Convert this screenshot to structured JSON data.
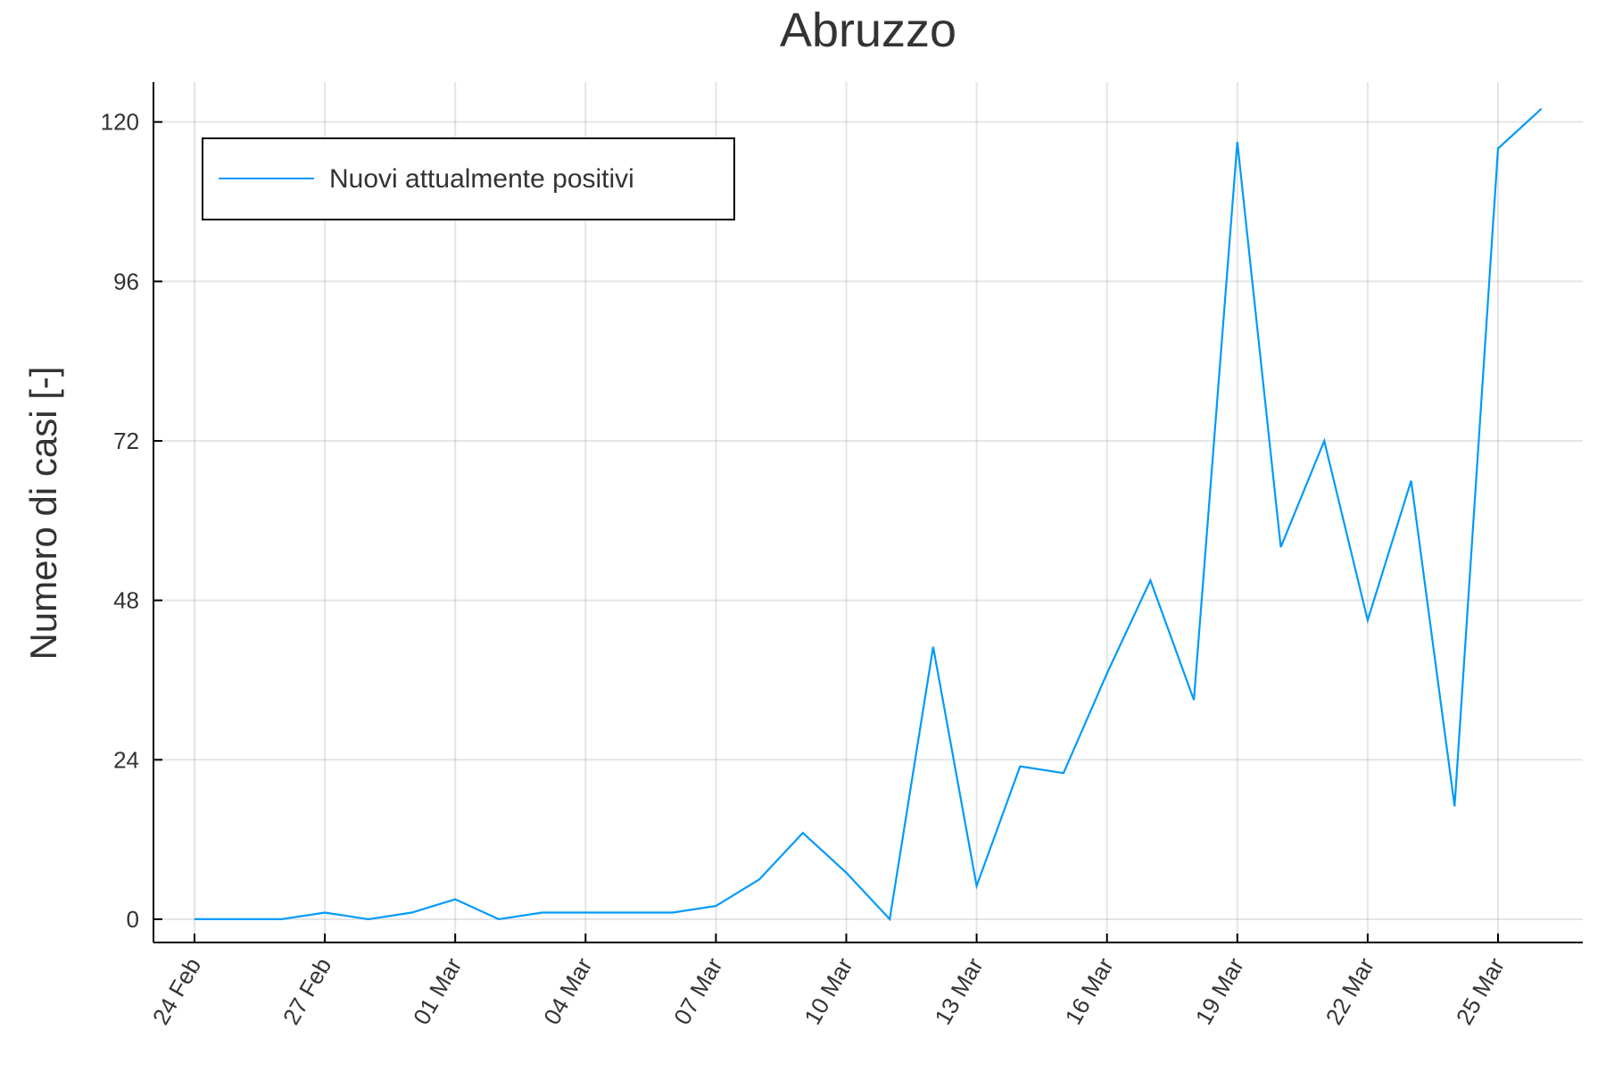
{
  "chart_data": {
    "type": "line",
    "title": "Abruzzo",
    "xlabel": "",
    "ylabel": "Numero di casi [-]",
    "x": [
      "24 Feb",
      "25 Feb",
      "26 Feb",
      "27 Feb",
      "28 Feb",
      "29 Feb",
      "01 Mar",
      "02 Mar",
      "03 Mar",
      "04 Mar",
      "05 Mar",
      "06 Mar",
      "07 Mar",
      "08 Mar",
      "09 Mar",
      "10 Mar",
      "11 Mar",
      "12 Mar",
      "13 Mar",
      "14 Mar",
      "15 Mar",
      "16 Mar",
      "17 Mar",
      "18 Mar",
      "19 Mar",
      "20 Mar",
      "21 Mar",
      "22 Mar",
      "23 Mar",
      "24 Mar",
      "25 Mar",
      "26 Mar"
    ],
    "x_tick_labels": [
      "24 Feb",
      "27 Feb",
      "01 Mar",
      "04 Mar",
      "07 Mar",
      "10 Mar",
      "13 Mar",
      "16 Mar",
      "19 Mar",
      "22 Mar",
      "25 Mar"
    ],
    "y_ticks": [
      0,
      24,
      48,
      72,
      96,
      120
    ],
    "ylim": [
      -3.5,
      126
    ],
    "grid": true,
    "legend_position": "top-left",
    "series": [
      {
        "name": "Nuovi attualmente positivi",
        "color": "#009AFA",
        "values": [
          0,
          0,
          0,
          1,
          0,
          1,
          3,
          0,
          1,
          1,
          1,
          1,
          2,
          6,
          13,
          7,
          0,
          41,
          5,
          23,
          22,
          37,
          51,
          33,
          117,
          56,
          72,
          45,
          66,
          17,
          116,
          122
        ]
      }
    ]
  }
}
